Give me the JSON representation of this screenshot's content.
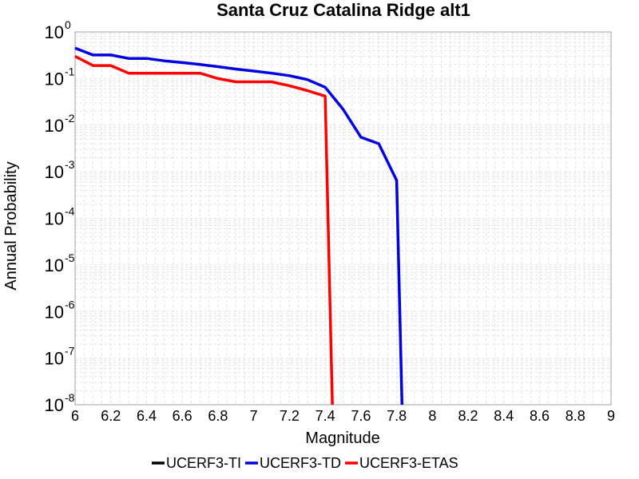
{
  "chart_data": {
    "type": "line",
    "title": "Santa Cruz Catalina Ridge alt1",
    "xlabel": "Magnitude",
    "ylabel": "Annual Probability",
    "xlim": [
      6,
      9
    ],
    "ylim": [
      1e-08,
      1
    ],
    "y_scale": "log",
    "x_ticks": [
      6,
      6.2,
      6.4,
      6.6,
      6.8,
      7,
      7.2,
      7.4,
      7.6,
      7.8,
      8,
      8.2,
      8.4,
      8.6,
      8.8,
      9
    ],
    "y_tick_exponents": [
      0,
      -1,
      -2,
      -3,
      -4,
      -5,
      -6,
      -7,
      -8
    ],
    "grid": true,
    "legend_position": "bottom",
    "series": [
      {
        "name": "UCERF3-TI",
        "color": "#000000",
        "x": [],
        "y": []
      },
      {
        "name": "UCERF3-TD",
        "color": "#0000e0",
        "x": [
          6.0,
          6.1,
          6.2,
          6.3,
          6.4,
          6.5,
          6.6,
          6.7,
          6.8,
          6.9,
          7.0,
          7.1,
          7.2,
          7.3,
          7.4,
          7.5,
          7.6,
          7.7,
          7.8,
          7.83
        ],
        "y": [
          0.45,
          0.32,
          0.32,
          0.27,
          0.27,
          0.24,
          0.22,
          0.2,
          0.18,
          0.16,
          0.145,
          0.13,
          0.115,
          0.095,
          0.065,
          0.022,
          0.0055,
          0.004,
          0.00065,
          1e-08
        ]
      },
      {
        "name": "UCERF3-ETAS",
        "color": "#ff0000",
        "x": [
          6.0,
          6.1,
          6.2,
          6.3,
          6.4,
          6.5,
          6.6,
          6.7,
          6.8,
          6.9,
          7.0,
          7.1,
          7.2,
          7.3,
          7.4,
          7.44
        ],
        "y": [
          0.3,
          0.19,
          0.19,
          0.13,
          0.13,
          0.13,
          0.13,
          0.13,
          0.1,
          0.085,
          0.085,
          0.085,
          0.07,
          0.055,
          0.042,
          1e-08
        ]
      }
    ]
  }
}
